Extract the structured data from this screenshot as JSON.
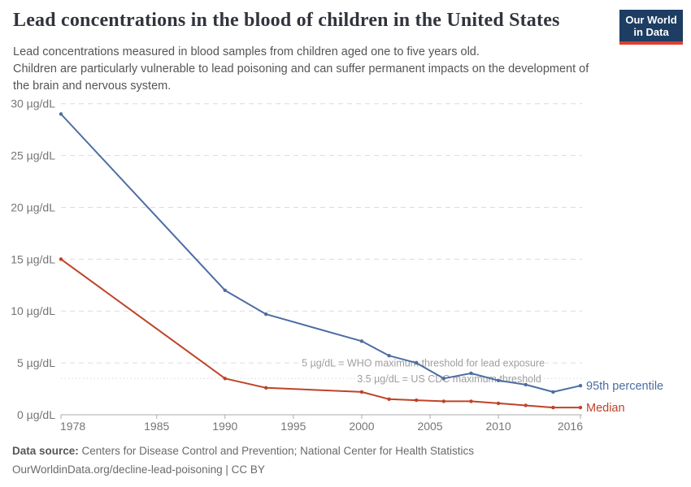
{
  "header": {
    "title": "Lead concentrations in the blood of children in the United States",
    "subtitle_lines": [
      "Lead concentrations measured in blood samples from children aged one to five years old.",
      "Children are particularly vulnerable to lead poisoning and can suffer permanent impacts on the development of",
      "the brain and nervous system."
    ],
    "logo": {
      "line1": "Our World",
      "line2": "in Data",
      "bg_color": "#1d3d63",
      "bar_color": "#dc3e32"
    }
  },
  "chart_data": {
    "type": "line",
    "x": [
      1978,
      1990,
      1993,
      2000,
      2002,
      2004,
      2006,
      2008,
      2010,
      2012,
      2014,
      2016
    ],
    "series": [
      {
        "name": "95th percentile",
        "color": "#4C6DA4",
        "values": [
          29,
          12,
          9.7,
          7.1,
          5.7,
          5.0,
          3.5,
          4.0,
          3.3,
          2.9,
          2.2,
          2.8
        ]
      },
      {
        "name": "Median",
        "color": "#BE4327",
        "values": [
          15,
          3.5,
          2.6,
          2.2,
          1.5,
          1.4,
          1.3,
          1.3,
          1.1,
          0.9,
          0.7,
          0.7
        ]
      }
    ],
    "xlim": [
      1978,
      2016
    ],
    "ylim": [
      0,
      30
    ],
    "xticks": [
      1978,
      1985,
      1990,
      1995,
      2000,
      2005,
      2010,
      2016
    ],
    "yticks": [
      0,
      5,
      10,
      15,
      20,
      25,
      30
    ],
    "y_unit": "µg/dL",
    "grid": "horizontal-dashed",
    "legend_position": "line-end-labels",
    "annotations": [
      {
        "text": "5 µg/dL = WHO maximum threshold for lead exposure",
        "y": 5,
        "x_center_year": 2004.5,
        "line": "gridline"
      },
      {
        "text": "3.5 µg/dL = US CDC maximum threshold",
        "y": 3.5,
        "x_center_year": 2006.4,
        "line": "dotted"
      }
    ]
  },
  "footer": {
    "source_label": "Data source:",
    "source_text": "Centers for Disease Control and Prevention; National Center for Health Statistics",
    "link_text": "OurWorldinData.org/decline-lead-poisoning | CC BY"
  }
}
